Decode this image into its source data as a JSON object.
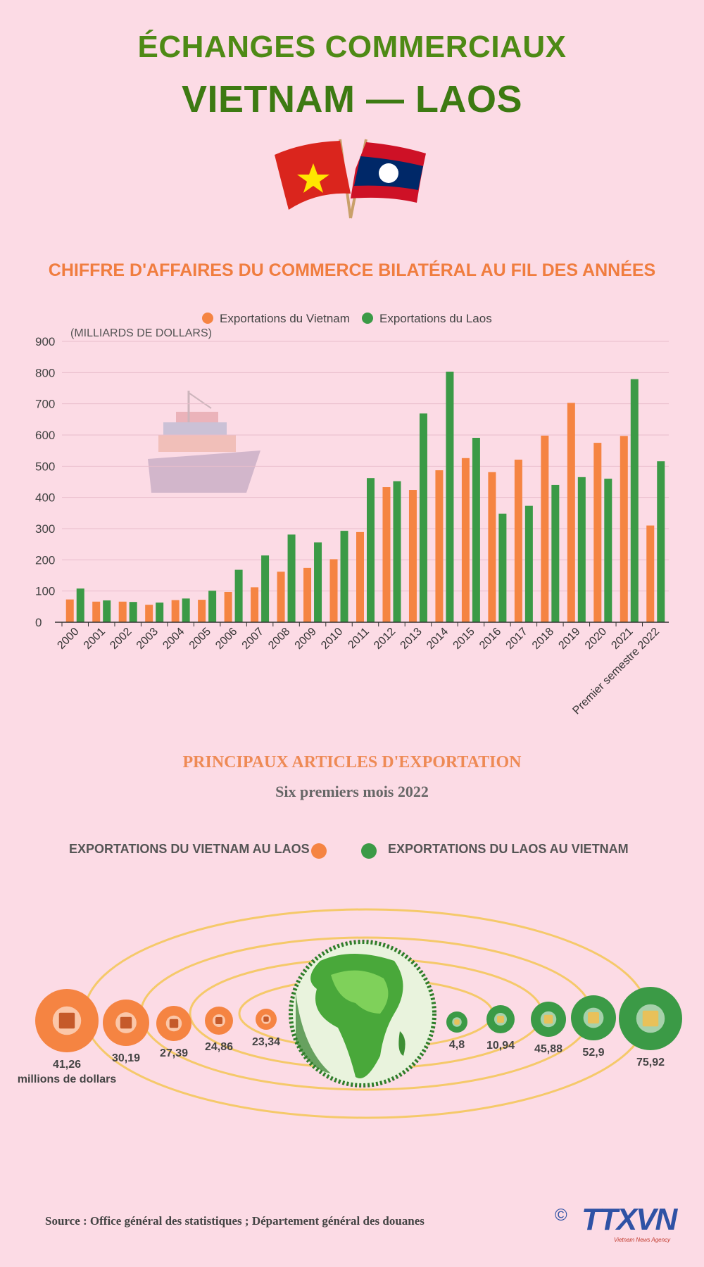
{
  "header": {
    "title_line1": "ÉCHANGES COMMERCIAUX",
    "title_line2": "VIETNAM — LAOS"
  },
  "colors": {
    "vietnam": "#f58442",
    "laos": "#3b9a46"
  },
  "chart_data": {
    "type": "bar",
    "title": "CHIFFRE D'AFFAIRES DU COMMERCE BILATÉRAL AU FIL DES ANNÉES",
    "ylabel": "(MILLIARDS DE DOLLARS)",
    "ylim": [
      0,
      900
    ],
    "yticks": [
      "0",
      "100",
      "200",
      "300",
      "400",
      "500",
      "600",
      "700",
      "800",
      "900"
    ],
    "grid": true,
    "legend_position": "top-center",
    "categories": [
      "2000",
      "2001",
      "2002",
      "2003",
      "2004",
      "2005",
      "2006",
      "2007",
      "2008",
      "2009",
      "2010",
      "2011",
      "2012",
      "2013",
      "2014",
      "2015",
      "2016",
      "2017",
      "2018",
      "2019",
      "2020",
      "2021",
      "Premier semestre 2022"
    ],
    "series": [
      {
        "name": "Exportations du Vietnam",
        "color": "#f58442",
        "values": [
          73,
          66,
          66,
          56,
          71,
          72,
          97,
          112,
          162,
          174,
          202,
          289,
          433,
          424,
          487,
          526,
          481,
          521,
          598,
          703,
          575,
          597,
          310
        ]
      },
      {
        "name": "Exportations du Laos",
        "color": "#3b9a46",
        "values": [
          108,
          70,
          65,
          63,
          76,
          101,
          168,
          214,
          281,
          256,
          293,
          462,
          452,
          669,
          803,
          591,
          348,
          373,
          440,
          465,
          460,
          779,
          516
        ]
      }
    ]
  },
  "exports": {
    "title": "PRINCIPAUX ARTICLES D'EXPORTATION",
    "subtitle": "Six premiers mois 2022",
    "legend_vietnam": "EXPORTATIONS DU VIETNAM AU LAOS",
    "legend_laos": "EXPORTATIONS DU LAOS AU VIETNAM",
    "unit": "millions de dollars",
    "vietnam_items": [
      {
        "value": "41,26",
        "icon": "metal-products-icon"
      },
      {
        "value": "30,19",
        "icon": "oil-can-icon"
      },
      {
        "value": "27,39",
        "icon": "machinery-icon"
      },
      {
        "value": "24,86",
        "icon": "vehicle-icon"
      },
      {
        "value": "23,34",
        "icon": "vegetable-icon"
      }
    ],
    "laos_items": [
      {
        "value": "4,8",
        "icon": "plant-icon"
      },
      {
        "value": "10,94",
        "icon": "ore-icon"
      },
      {
        "value": "45,88",
        "icon": "fertilizer-bag-icon"
      },
      {
        "value": "52,9",
        "icon": "fruit-icon"
      },
      {
        "value": "75,92",
        "icon": "wood-icon"
      }
    ]
  },
  "footer": {
    "source": "Source : Office général des statistiques ; Département général des douanes",
    "copyright_symbol": "©",
    "logo_text": "TTXVN",
    "logo_subtext": "Vietnam News Agency"
  }
}
